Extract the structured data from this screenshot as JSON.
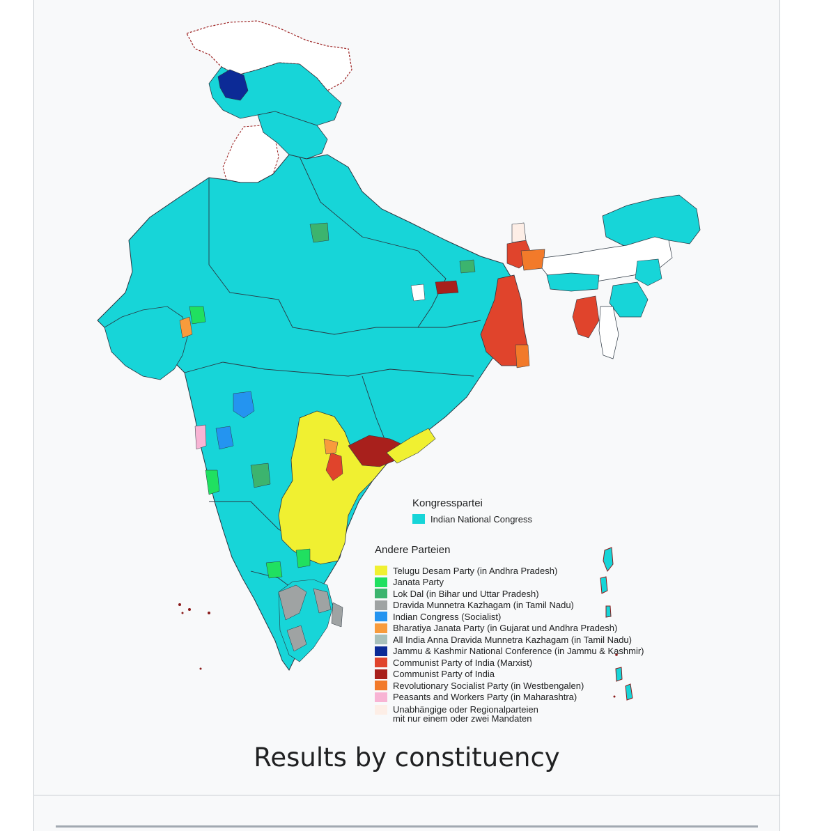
{
  "caption": "Results by constituency",
  "legend": {
    "congress_title": "Kongresspartei",
    "congress": {
      "label": "Indian National Congress",
      "color": "#17d5d8"
    },
    "others_title": "Andere Parteien",
    "others": [
      {
        "label": "Telugu Desam Party (in Andhra Pradesh)",
        "color": "#f0f031"
      },
      {
        "label": "Janata Party",
        "color": "#20e060"
      },
      {
        "label": "Lok Dal (in Bihar und Uttar Pradesh)",
        "color": "#3cb46e"
      },
      {
        "label": "Dravida Munnetra Kazhagam (in Tamil Nadu)",
        "color": "#9fa3a3"
      },
      {
        "label": "Indian Congress (Socialist)",
        "color": "#2494f0"
      },
      {
        "label": "Bharatiya Janata Party (in Gujarat und Andhra Pradesh)",
        "color": "#f89b3c"
      },
      {
        "label": "All India Anna Dravida Munnetra Kazhagam (in Tamil Nadu)",
        "color": "#a8c0bb"
      },
      {
        "label": "Jammu & Kashmir National Conference (in Jammu & Kashmir)",
        "color": "#0c2a96"
      },
      {
        "label": "Communist Party of India (Marxist)",
        "color": "#e0442c"
      },
      {
        "label": "Communist Party of India",
        "color": "#a8201c"
      },
      {
        "label": "Revolutionary Socialist Party (in Westbengalen)",
        "color": "#f27a2a"
      },
      {
        "label": "Peasants and Workers Party (in Maharashtra)",
        "color": "#f8b4d4"
      },
      {
        "label": "Unabhängige oder Regionalparteien",
        "label2": "mit nur einem oder zwei Mandaten",
        "color": "#fdeee6"
      }
    ]
  },
  "colors": {
    "congress": "#17d5d8",
    "border": "#8a1a1a",
    "state_border": "#2a3540",
    "white_region": "#ffffff"
  }
}
